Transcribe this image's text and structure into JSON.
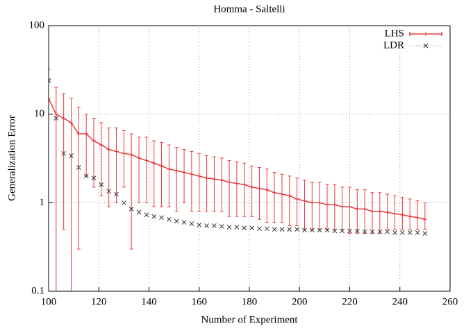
{
  "chart_data": {
    "type": "line",
    "title": "Homma - Saltelli",
    "xlabel": "Number of Experiment",
    "ylabel": "Generalization Error",
    "log_y": true,
    "grid": true,
    "legend": "top-right",
    "xlim": [
      100,
      260
    ],
    "xticks": [
      100,
      120,
      140,
      160,
      180,
      200,
      220,
      240,
      260
    ],
    "ylim": [
      0.1,
      100
    ],
    "yticks": [
      0.1,
      1,
      10,
      100
    ],
    "x": [
      100,
      103,
      106,
      109,
      112,
      115,
      118,
      121,
      124,
      127,
      130,
      133,
      136,
      139,
      142,
      145,
      148,
      151,
      154,
      157,
      160,
      163,
      166,
      169,
      172,
      175,
      178,
      181,
      184,
      187,
      190,
      193,
      196,
      199,
      202,
      205,
      208,
      211,
      214,
      217,
      220,
      223,
      226,
      229,
      232,
      235,
      238,
      241,
      244,
      247,
      250
    ],
    "series": [
      {
        "name": "LHS",
        "color": "#e8383a",
        "marker": "+",
        "values": [
          15,
          10,
          9,
          8,
          6,
          6,
          5,
          4.5,
          4,
          3.8,
          3.6,
          3.5,
          3.2,
          3,
          2.8,
          2.6,
          2.4,
          2.3,
          2.2,
          2.1,
          2,
          1.9,
          1.85,
          1.8,
          1.7,
          1.65,
          1.6,
          1.5,
          1.45,
          1.4,
          1.3,
          1.25,
          1.2,
          1.1,
          1.05,
          1,
          1,
          0.95,
          0.95,
          0.9,
          0.9,
          0.85,
          0.85,
          0.8,
          0.8,
          0.78,
          0.75,
          0.73,
          0.7,
          0.68,
          0.65
        ],
        "error_low": [
          0.05,
          0.08,
          0.5,
          0.06,
          0.3,
          2,
          1.5,
          1.2,
          0.9,
          1.0,
          1.5,
          0.3,
          1.0,
          1.0,
          0.9,
          0.9,
          0.9,
          0.8,
          1.0,
          0.8,
          0.8,
          0.8,
          0.8,
          0.8,
          0.7,
          0.7,
          0.7,
          0.7,
          0.65,
          0.6,
          0.6,
          0.6,
          0.55,
          0.55,
          0.5,
          0.5,
          0.5,
          0.5,
          0.5,
          0.5,
          0.45,
          0.45,
          0.45,
          0.45,
          0.45,
          0.5,
          0.5,
          0.5,
          0.5,
          0.5,
          0.5
        ],
        "error_high": [
          32,
          20,
          17,
          15,
          12,
          10,
          9,
          8,
          7,
          7,
          6.5,
          6,
          5.5,
          5.5,
          5,
          4.8,
          4.5,
          4.2,
          4,
          3.8,
          3.6,
          3.4,
          3.3,
          3.2,
          3,
          2.9,
          2.8,
          2.6,
          2.5,
          2.4,
          2.2,
          2.1,
          2,
          1.9,
          1.8,
          1.7,
          1.7,
          1.6,
          1.6,
          1.5,
          1.5,
          1.4,
          1.4,
          1.3,
          1.3,
          1.25,
          1.2,
          1.15,
          1.1,
          1.05,
          1.0
        ]
      },
      {
        "name": "LDR",
        "color": "#333333",
        "marker": "x",
        "values": [
          24,
          9,
          3.6,
          3.4,
          2.5,
          2,
          1.9,
          1.6,
          1.35,
          1.25,
          1,
          0.85,
          0.78,
          0.73,
          0.7,
          0.68,
          0.65,
          0.62,
          0.6,
          0.58,
          0.56,
          0.55,
          0.55,
          0.54,
          0.53,
          0.53,
          0.52,
          0.52,
          0.51,
          0.51,
          0.5,
          0.5,
          0.5,
          0.5,
          0.49,
          0.49,
          0.49,
          0.49,
          0.48,
          0.48,
          0.48,
          0.48,
          0.47,
          0.47,
          0.47,
          0.47,
          0.46,
          0.46,
          0.46,
          0.46,
          0.45
        ]
      }
    ]
  }
}
